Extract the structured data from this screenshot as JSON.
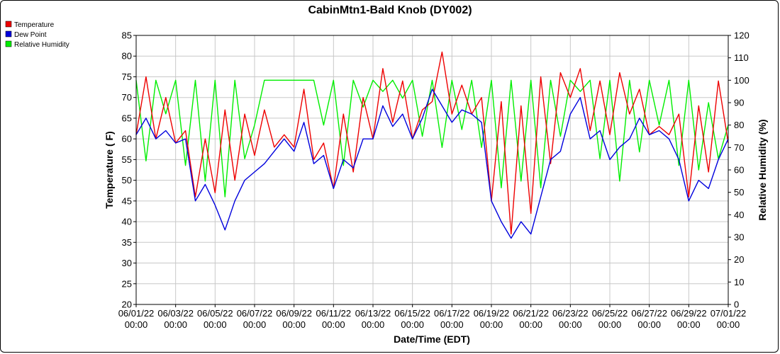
{
  "chart_data": {
    "type": "line",
    "title": "CabinMtn1-Bald Knob (DY002)",
    "xlabel": "Date/Time (EDT)",
    "ylabel": "Temperature ( F)",
    "y2label": "Relative Humidity (%)",
    "xlim": [
      "06/01/22 00:00",
      "07/01/22 00:00"
    ],
    "ylim": [
      20,
      85
    ],
    "y2lim": [
      0,
      120
    ],
    "y_ticks": [
      20,
      25,
      30,
      35,
      40,
      45,
      50,
      55,
      60,
      65,
      70,
      75,
      80,
      85
    ],
    "y2_ticks": [
      0,
      10,
      20,
      30,
      40,
      50,
      60,
      70,
      80,
      90,
      100,
      110,
      120
    ],
    "x_ticks": [
      {
        "date": "06/01/22",
        "time": "00:00"
      },
      {
        "date": "06/03/22",
        "time": "00:00"
      },
      {
        "date": "06/05/22",
        "time": "00:00"
      },
      {
        "date": "06/07/22",
        "time": "00:00"
      },
      {
        "date": "06/09/22",
        "time": "00:00"
      },
      {
        "date": "06/11/22",
        "time": "00:00"
      },
      {
        "date": "06/13/22",
        "time": "00:00"
      },
      {
        "date": "06/15/22",
        "time": "00:00"
      },
      {
        "date": "06/17/22",
        "time": "00:00"
      },
      {
        "date": "06/19/22",
        "time": "00:00"
      },
      {
        "date": "06/21/22",
        "time": "00:00"
      },
      {
        "date": "06/23/22",
        "time": "00:00"
      },
      {
        "date": "06/25/22",
        "time": "00:00"
      },
      {
        "date": "06/27/22",
        "time": "00:00"
      },
      {
        "date": "06/29/22",
        "time": "00:00"
      },
      {
        "date": "07/01/22",
        "time": "00:00"
      }
    ],
    "grid": true,
    "legend_position": "top-left",
    "series": [
      {
        "name": "Temperature",
        "color": "#ee0000",
        "axis": "left",
        "x": [
          "06/01/22 00:00",
          "06/01/22 12:00",
          "06/02/22 00:00",
          "06/02/22 12:00",
          "06/03/22 00:00",
          "06/03/22 12:00",
          "06/04/22 00:00",
          "06/04/22 12:00",
          "06/05/22 00:00",
          "06/05/22 12:00",
          "06/06/22 00:00",
          "06/06/22 12:00",
          "06/07/22 00:00",
          "06/07/22 12:00",
          "06/08/22 00:00",
          "06/08/22 12:00",
          "06/09/22 00:00",
          "06/09/22 12:00",
          "06/10/22 00:00",
          "06/10/22 12:00",
          "06/11/22 00:00",
          "06/11/22 12:00",
          "06/12/22 00:00",
          "06/12/22 12:00",
          "06/13/22 00:00",
          "06/13/22 12:00",
          "06/14/22 00:00",
          "06/14/22 12:00",
          "06/15/22 00:00",
          "06/15/22 12:00",
          "06/16/22 00:00",
          "06/16/22 12:00",
          "06/17/22 00:00",
          "06/17/22 12:00",
          "06/18/22 00:00",
          "06/18/22 12:00",
          "06/19/22 00:00",
          "06/19/22 12:00",
          "06/20/22 00:00",
          "06/20/22 12:00",
          "06/21/22 00:00",
          "06/21/22 12:00",
          "06/22/22 00:00",
          "06/22/22 12:00",
          "06/23/22 00:00",
          "06/23/22 12:00",
          "06/24/22 00:00",
          "06/24/22 12:00",
          "06/25/22 00:00",
          "06/25/22 12:00",
          "06/26/22 00:00",
          "06/26/22 12:00",
          "06/27/22 00:00",
          "06/27/22 12:00",
          "06/28/22 00:00",
          "06/28/22 12:00",
          "06/29/22 00:00",
          "06/29/22 12:00",
          "06/30/22 00:00",
          "06/30/22 12:00",
          "07/01/22 00:00"
        ],
        "values": [
          61,
          75,
          60,
          70,
          59,
          62,
          46,
          60,
          47,
          67,
          50,
          66,
          56,
          67,
          58,
          61,
          58,
          72,
          55,
          59,
          48,
          66,
          52,
          70,
          60,
          77,
          64,
          74,
          60,
          67,
          69,
          81,
          66,
          73,
          66,
          70,
          45,
          69,
          37,
          68,
          42,
          75,
          54,
          76,
          70,
          77,
          62,
          74,
          61,
          76,
          66,
          72,
          61,
          63,
          61,
          66,
          46,
          68,
          52,
          74,
          59
        ]
      },
      {
        "name": "Dew Point",
        "color": "#0000dd",
        "axis": "left",
        "x": [
          "06/01/22 00:00",
          "06/01/22 12:00",
          "06/02/22 00:00",
          "06/02/22 12:00",
          "06/03/22 00:00",
          "06/03/22 12:00",
          "06/04/22 00:00",
          "06/04/22 12:00",
          "06/05/22 00:00",
          "06/05/22 12:00",
          "06/06/22 00:00",
          "06/06/22 12:00",
          "06/07/22 00:00",
          "06/07/22 12:00",
          "06/08/22 00:00",
          "06/08/22 12:00",
          "06/09/22 00:00",
          "06/09/22 12:00",
          "06/10/22 00:00",
          "06/10/22 12:00",
          "06/11/22 00:00",
          "06/11/22 12:00",
          "06/12/22 00:00",
          "06/12/22 12:00",
          "06/13/22 00:00",
          "06/13/22 12:00",
          "06/14/22 00:00",
          "06/14/22 12:00",
          "06/15/22 00:00",
          "06/15/22 12:00",
          "06/16/22 00:00",
          "06/16/22 12:00",
          "06/17/22 00:00",
          "06/17/22 12:00",
          "06/18/22 00:00",
          "06/18/22 12:00",
          "06/19/22 00:00",
          "06/19/22 12:00",
          "06/20/22 00:00",
          "06/20/22 12:00",
          "06/21/22 00:00",
          "06/21/22 12:00",
          "06/22/22 00:00",
          "06/22/22 12:00",
          "06/23/22 00:00",
          "06/23/22 12:00",
          "06/24/22 00:00",
          "06/24/22 12:00",
          "06/25/22 00:00",
          "06/25/22 12:00",
          "06/26/22 00:00",
          "06/26/22 12:00",
          "06/27/22 00:00",
          "06/27/22 12:00",
          "06/28/22 00:00",
          "06/28/22 12:00",
          "06/29/22 00:00",
          "06/29/22 12:00",
          "06/30/22 00:00",
          "06/30/22 12:00",
          "07/01/22 00:00"
        ],
        "values": [
          61,
          65,
          60,
          62,
          59,
          60,
          45,
          49,
          44,
          38,
          45,
          50,
          52,
          54,
          57,
          60,
          57,
          64,
          54,
          56,
          48,
          55,
          53,
          60,
          60,
          68,
          63,
          66,
          60,
          65,
          72,
          68,
          64,
          67,
          66,
          64,
          45,
          40,
          36,
          40,
          37,
          46,
          55,
          57,
          66,
          70,
          60,
          62,
          55,
          58,
          60,
          65,
          61,
          62,
          60,
          55,
          45,
          50,
          48,
          55,
          60
        ]
      },
      {
        "name": "Relative Humidity",
        "color": "#00ee00",
        "axis": "right",
        "x": [
          "06/01/22 00:00",
          "06/01/22 12:00",
          "06/02/22 00:00",
          "06/02/22 12:00",
          "06/03/22 00:00",
          "06/03/22 12:00",
          "06/04/22 00:00",
          "06/04/22 12:00",
          "06/05/22 00:00",
          "06/05/22 12:00",
          "06/06/22 00:00",
          "06/06/22 12:00",
          "06/07/22 00:00",
          "06/07/22 12:00",
          "06/08/22 00:00",
          "06/08/22 12:00",
          "06/09/22 00:00",
          "06/09/22 12:00",
          "06/10/22 00:00",
          "06/10/22 12:00",
          "06/11/22 00:00",
          "06/11/22 12:00",
          "06/12/22 00:00",
          "06/12/22 12:00",
          "06/13/22 00:00",
          "06/13/22 12:00",
          "06/14/22 00:00",
          "06/14/22 12:00",
          "06/15/22 00:00",
          "06/15/22 12:00",
          "06/16/22 00:00",
          "06/16/22 12:00",
          "06/17/22 00:00",
          "06/17/22 12:00",
          "06/18/22 00:00",
          "06/18/22 12:00",
          "06/19/22 00:00",
          "06/19/22 12:00",
          "06/20/22 00:00",
          "06/20/22 12:00",
          "06/21/22 00:00",
          "06/21/22 12:00",
          "06/22/22 00:00",
          "06/22/22 12:00",
          "06/23/22 00:00",
          "06/23/22 12:00",
          "06/24/22 00:00",
          "06/24/22 12:00",
          "06/25/22 00:00",
          "06/25/22 12:00",
          "06/26/22 00:00",
          "06/26/22 12:00",
          "06/27/22 00:00",
          "06/27/22 12:00",
          "06/28/22 00:00",
          "06/28/22 12:00",
          "06/29/22 00:00",
          "06/29/22 12:00",
          "06/30/22 00:00",
          "06/30/22 12:00",
          "07/01/22 00:00"
        ],
        "values": [
          100,
          64,
          100,
          85,
          100,
          62,
          100,
          55,
          100,
          48,
          100,
          65,
          80,
          100,
          100,
          100,
          100,
          100,
          100,
          80,
          100,
          62,
          100,
          88,
          100,
          95,
          100,
          92,
          100,
          75,
          100,
          70,
          100,
          78,
          100,
          70,
          100,
          52,
          100,
          55,
          100,
          52,
          100,
          75,
          100,
          95,
          100,
          65,
          100,
          55,
          100,
          68,
          100,
          80,
          100,
          62,
          100,
          60,
          90,
          65,
          80
        ]
      }
    ]
  }
}
